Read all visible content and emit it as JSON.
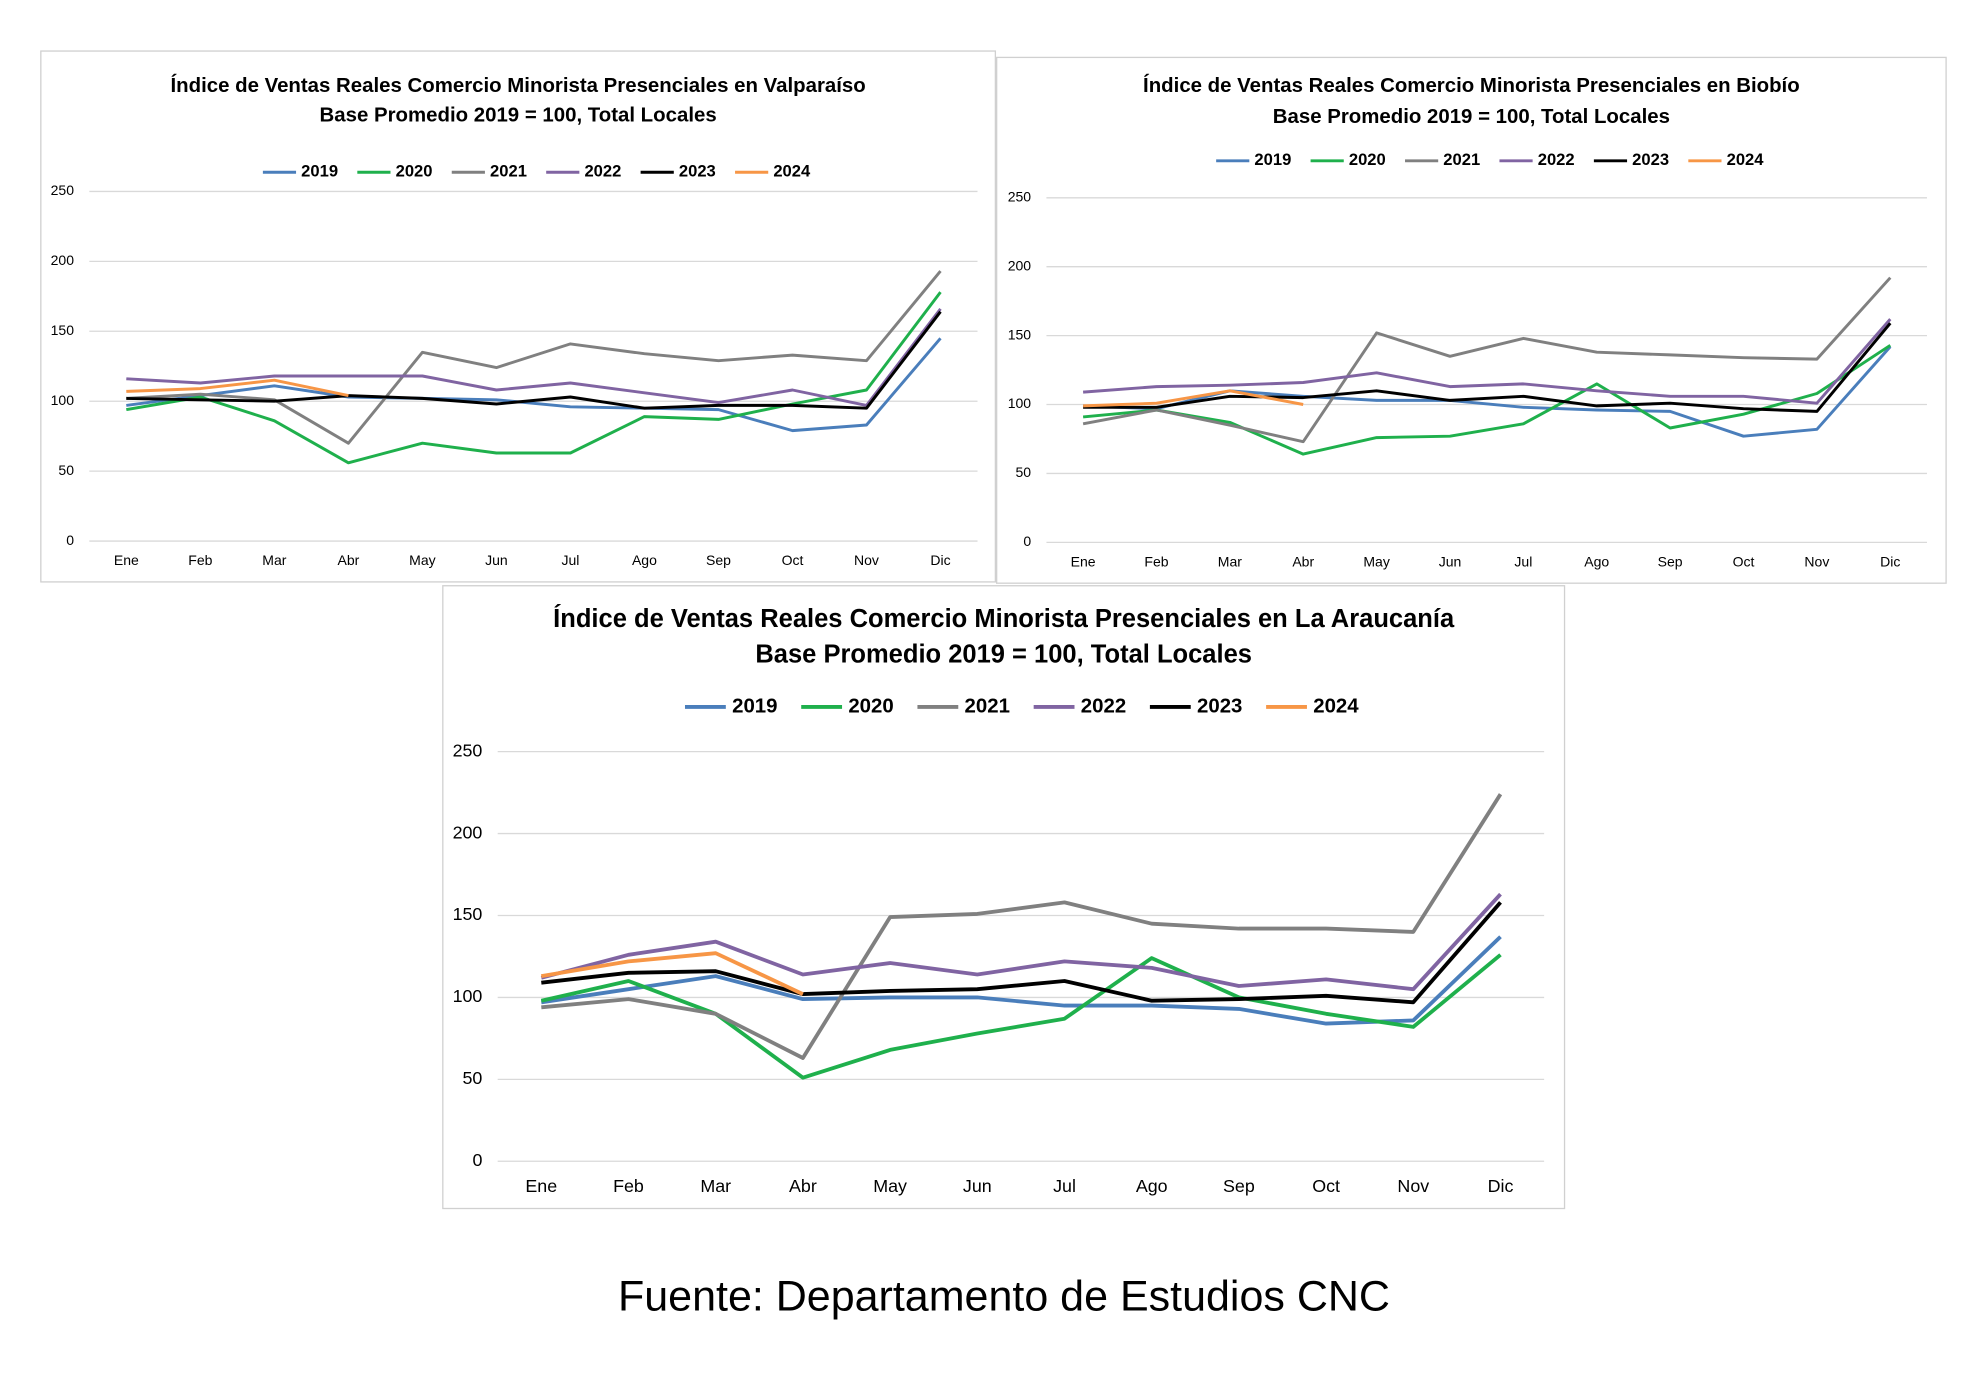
{
  "chart_data": [
    {
      "type": "line",
      "title": "Índice de Ventas Reales Comercio Minorista Presenciales en Valparaíso",
      "subtitle": "Base Promedio 2019 = 100, Total Locales",
      "categories": [
        "Ene",
        "Feb",
        "Mar",
        "Abr",
        "May",
        "Jun",
        "Jul",
        "Ago",
        "Sep",
        "Oct",
        "Nov",
        "Dic"
      ],
      "ylim": [
        0,
        250
      ],
      "yticks": [
        0,
        50,
        100,
        150,
        200,
        250
      ],
      "grid": true,
      "legend": "top",
      "series": [
        {
          "name": "2019",
          "color": "#4a7ebb",
          "values": [
            97,
            104,
            111,
            103,
            102,
            101,
            96,
            95,
            94,
            79,
            83,
            145
          ]
        },
        {
          "name": "2020",
          "color": "#1fb04c",
          "values": [
            94,
            103,
            86,
            56,
            70,
            63,
            63,
            89,
            87,
            98,
            108,
            178
          ]
        },
        {
          "name": "2021",
          "color": "#808080",
          "values": [
            102,
            105,
            101,
            70,
            135,
            124,
            141,
            134,
            129,
            133,
            129,
            193
          ]
        },
        {
          "name": "2022",
          "color": "#8064a2",
          "values": [
            116,
            113,
            118,
            118,
            118,
            108,
            113,
            106,
            99,
            108,
            97,
            166
          ]
        },
        {
          "name": "2023",
          "color": "#000000",
          "values": [
            102,
            101,
            100,
            104,
            102,
            98,
            103,
            95,
            97,
            97,
            95,
            164
          ]
        },
        {
          "name": "2024",
          "color": "#f79646",
          "values": [
            107,
            109,
            115,
            104,
            null,
            null,
            null,
            null,
            null,
            null,
            null,
            null
          ]
        }
      ]
    },
    {
      "type": "line",
      "title": "Índice de Ventas Reales Comercio Minorista Presenciales en Biobío",
      "subtitle": "Base Promedio 2019 = 100, Total Locales",
      "categories": [
        "Ene",
        "Feb",
        "Mar",
        "Abr",
        "May",
        "Jun",
        "Jul",
        "Ago",
        "Sep",
        "Oct",
        "Nov",
        "Dic"
      ],
      "ylim": [
        0,
        250
      ],
      "yticks": [
        0,
        50,
        100,
        150,
        200,
        250
      ],
      "grid": true,
      "legend": "top",
      "series": [
        {
          "name": "2019",
          "color": "#4a7ebb",
          "values": [
            99,
            97,
            110,
            106,
            103,
            103,
            98,
            96,
            95,
            77,
            82,
            142
          ]
        },
        {
          "name": "2020",
          "color": "#1fb04c",
          "values": [
            91,
            96,
            87,
            64,
            76,
            77,
            86,
            115,
            83,
            93,
            108,
            143
          ]
        },
        {
          "name": "2021",
          "color": "#808080",
          "values": [
            86,
            96,
            85,
            73,
            152,
            135,
            148,
            138,
            136,
            134,
            133,
            192
          ]
        },
        {
          "name": "2022",
          "color": "#8064a2",
          "values": [
            109,
            113,
            114,
            116,
            123,
            113,
            115,
            110,
            106,
            106,
            101,
            162
          ]
        },
        {
          "name": "2023",
          "color": "#000000",
          "values": [
            98,
            98,
            106,
            105,
            110,
            103,
            106,
            99,
            101,
            97,
            95,
            159
          ]
        },
        {
          "name": "2024",
          "color": "#f79646",
          "values": [
            99,
            101,
            110,
            100,
            null,
            null,
            null,
            null,
            null,
            null,
            null,
            null
          ]
        }
      ]
    },
    {
      "type": "line",
      "title": "Índice de Ventas Reales Comercio Minorista Presenciales en La Araucanía",
      "subtitle": "Base Promedio 2019 = 100, Total Locales",
      "categories": [
        "Ene",
        "Feb",
        "Mar",
        "Abr",
        "May",
        "Jun",
        "Jul",
        "Ago",
        "Sep",
        "Oct",
        "Nov",
        "Dic"
      ],
      "ylim": [
        0,
        250
      ],
      "yticks": [
        0,
        50,
        100,
        150,
        200,
        250
      ],
      "grid": true,
      "legend": "top",
      "series": [
        {
          "name": "2019",
          "color": "#4a7ebb",
          "values": [
            97,
            105,
            113,
            99,
            100,
            100,
            95,
            95,
            93,
            84,
            86,
            137
          ]
        },
        {
          "name": "2020",
          "color": "#1fb04c",
          "values": [
            98,
            110,
            90,
            51,
            68,
            78,
            87,
            124,
            100,
            90,
            82,
            126
          ]
        },
        {
          "name": "2021",
          "color": "#808080",
          "values": [
            94,
            99,
            90,
            63,
            149,
            151,
            158,
            145,
            142,
            142,
            140,
            224
          ]
        },
        {
          "name": "2022",
          "color": "#8064a2",
          "values": [
            112,
            126,
            134,
            114,
            121,
            114,
            122,
            118,
            107,
            111,
            105,
            163
          ]
        },
        {
          "name": "2023",
          "color": "#000000",
          "values": [
            109,
            115,
            116,
            102,
            104,
            105,
            110,
            98,
            99,
            101,
            97,
            158
          ]
        },
        {
          "name": "2024",
          "color": "#f79646",
          "values": [
            113,
            122,
            127,
            102,
            null,
            null,
            null,
            null,
            null,
            null,
            null,
            null
          ]
        }
      ]
    }
  ],
  "source": "Fuente: Departamento de Estudios CNC"
}
